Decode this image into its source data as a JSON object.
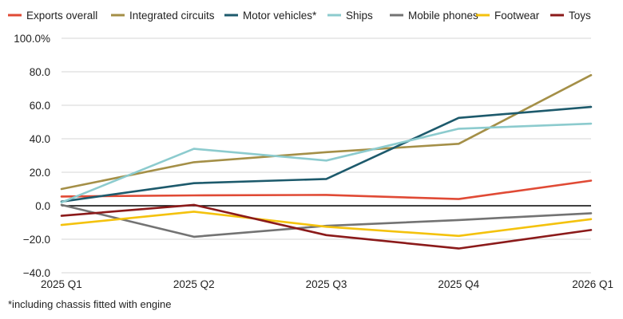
{
  "footnote": "*including chassis fitted with engine",
  "chart_data": {
    "type": "line",
    "x": [
      "2025 Q1",
      "2025 Q2",
      "2025 Q3",
      "2025 Q4",
      "2026 Q1"
    ],
    "y_tick_labels": [
      "100.0%",
      "80.0",
      "60.0",
      "40.0",
      "20.0",
      "0.0",
      "−20.0",
      "−40.0"
    ],
    "y_ticks": [
      100,
      80,
      60,
      40,
      20,
      0,
      -20,
      -40
    ],
    "ylim": [
      -40,
      100
    ],
    "grid": "horizontal",
    "legend": "top",
    "series": [
      {
        "name": "Exports overall",
        "color": "#e04a35",
        "values": [
          5.5,
          6.2,
          6.5,
          4.0,
          15.0
        ]
      },
      {
        "name": "Integrated circuits",
        "color": "#a48f47",
        "values": [
          10.0,
          26.0,
          32.0,
          37.0,
          78.0
        ]
      },
      {
        "name": "Motor vehicles*",
        "color": "#1d5a6c",
        "values": [
          2.5,
          13.5,
          16.0,
          52.5,
          59.0
        ]
      },
      {
        "name": "Ships",
        "color": "#8ccbce",
        "values": [
          2.0,
          34.0,
          27.0,
          46.0,
          49.0
        ]
      },
      {
        "name": "Mobile phones",
        "color": "#737373",
        "values": [
          0.5,
          -18.5,
          -12.0,
          -8.5,
          -4.5
        ]
      },
      {
        "name": "Footwear",
        "color": "#f4c20d",
        "values": [
          -11.5,
          -3.5,
          -12.5,
          -18.0,
          -8.0
        ]
      },
      {
        "name": "Toys",
        "color": "#8b1a1a",
        "values": [
          -6.0,
          0.5,
          -17.5,
          -25.5,
          -14.5
        ]
      }
    ]
  }
}
